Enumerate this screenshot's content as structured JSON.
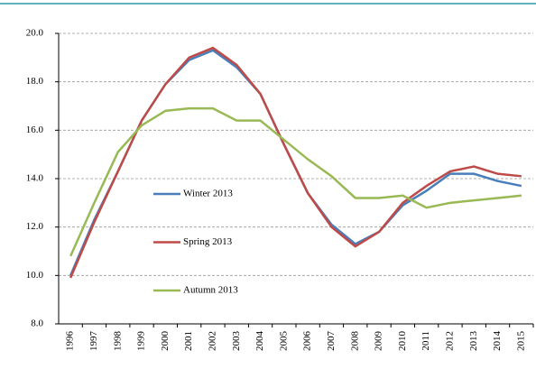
{
  "chart_data": {
    "type": "line",
    "categories": [
      "1996",
      "1997",
      "1998",
      "1999",
      "2000",
      "2001",
      "2002",
      "2003",
      "2004",
      "2005",
      "2006",
      "2007",
      "2008",
      "2009",
      "2010",
      "2011",
      "2012",
      "2013",
      "2014",
      "2015"
    ],
    "series": [
      {
        "name": "Winter 2013",
        "color": "#4a7ebb",
        "values": [
          10.0,
          12.3,
          14.3,
          16.4,
          17.9,
          18.9,
          19.3,
          18.6,
          17.5,
          15.4,
          13.4,
          12.1,
          11.3,
          11.8,
          12.9,
          13.5,
          14.2,
          14.2,
          13.9,
          13.7
        ]
      },
      {
        "name": "Spring 2013",
        "color": "#be4b48",
        "values": [
          9.9,
          12.2,
          14.3,
          16.4,
          17.9,
          19.0,
          19.4,
          18.7,
          17.5,
          15.4,
          13.4,
          12.0,
          11.2,
          11.8,
          13.0,
          13.7,
          14.3,
          14.5,
          14.2,
          14.1
        ]
      },
      {
        "name": "Autumn 2013",
        "color": "#98b954",
        "values": [
          10.8,
          13.0,
          15.1,
          16.2,
          16.8,
          16.9,
          16.9,
          16.4,
          16.4,
          15.6,
          14.8,
          14.1,
          13.2,
          13.2,
          13.3,
          12.8,
          13.0,
          13.1,
          13.2,
          13.3
        ]
      }
    ],
    "ylim": [
      8,
      20
    ],
    "yticks": [
      {
        "value": 8,
        "label": "8.0"
      },
      {
        "value": 10,
        "label": "10.0"
      },
      {
        "value": 12,
        "label": "12.0"
      },
      {
        "value": 14,
        "label": "14.0"
      },
      {
        "value": 16,
        "label": "16.0"
      },
      {
        "value": 18,
        "label": "18.0"
      },
      {
        "value": 20,
        "label": "20.0"
      }
    ],
    "grid": true
  }
}
